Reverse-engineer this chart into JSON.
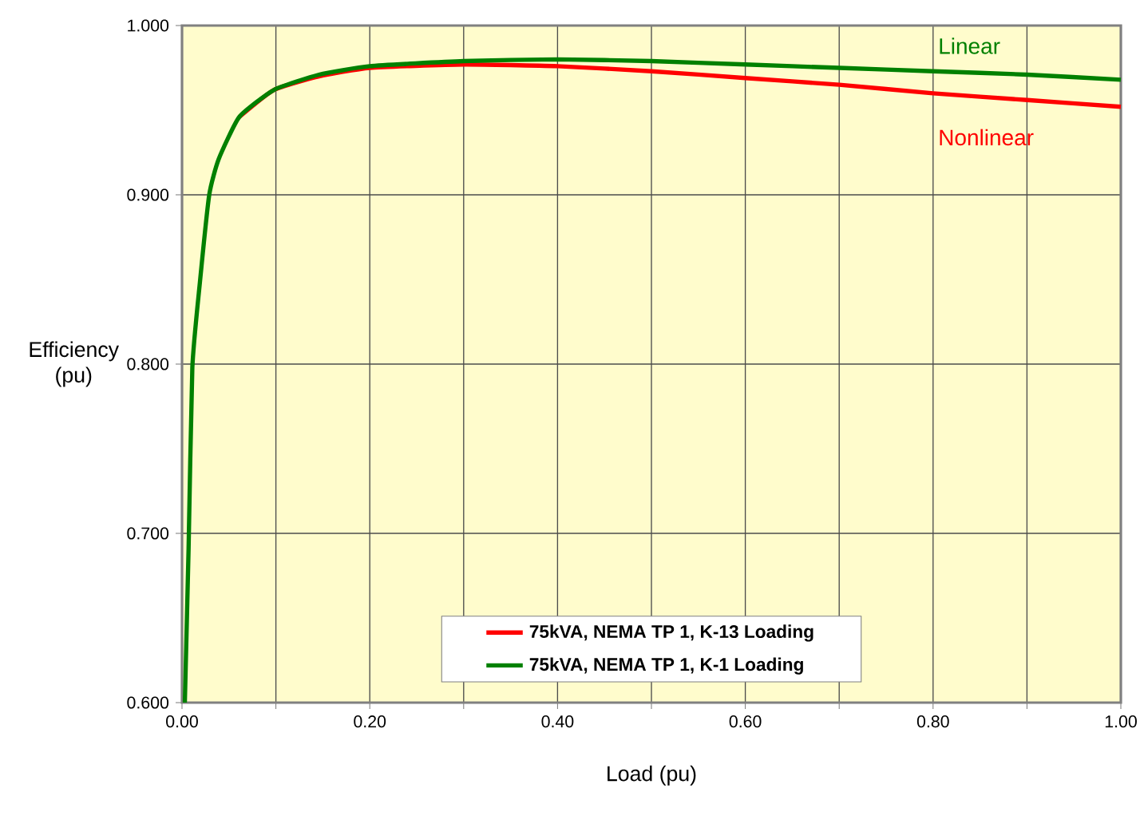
{
  "chart_data": {
    "type": "line",
    "xlabel": "Load (pu)",
    "ylabel": "Efficiency (pu)",
    "xlim": [
      0,
      1
    ],
    "ylim": [
      0.6,
      1.0
    ],
    "xticks": [
      {
        "value": 0,
        "label": "0.00"
      },
      {
        "value": 0.1,
        "label": null
      },
      {
        "value": 0.2,
        "label": "0.20"
      },
      {
        "value": 0.3,
        "label": null
      },
      {
        "value": 0.4,
        "label": "0.40"
      },
      {
        "value": 0.5,
        "label": null
      },
      {
        "value": 0.6,
        "label": "0.60"
      },
      {
        "value": 0.7,
        "label": null
      },
      {
        "value": 0.8,
        "label": "0.80"
      },
      {
        "value": 0.9,
        "label": null
      },
      {
        "value": 1.0,
        "label": "1.00"
      }
    ],
    "yticks": [
      {
        "value": 0.6,
        "label": "0.600"
      },
      {
        "value": 0.7,
        "label": "0.700"
      },
      {
        "value": 0.8,
        "label": "0.800"
      },
      {
        "value": 0.9,
        "label": "0.900"
      },
      {
        "value": 1.0,
        "label": "1.000"
      }
    ],
    "grid": true,
    "legend": "bottom",
    "marker": "none",
    "line_style": "solid",
    "x": [
      0.003,
      0.007,
      0.011,
      0.019,
      0.029,
      0.039,
      0.061,
      0.098,
      0.146,
      0.2,
      0.3,
      0.4,
      0.5,
      0.6,
      0.7,
      0.8,
      0.9,
      1.0
    ],
    "series": [
      {
        "name": "75kVA, NEMA TP 1, K-13 Loading",
        "color": "#ff0000",
        "values": [
          null,
          null,
          null,
          null,
          null,
          null,
          0.946,
          0.962,
          0.97,
          0.975,
          0.977,
          0.976,
          0.973,
          0.969,
          0.965,
          0.96,
          0.956,
          0.952
        ]
      },
      {
        "name": "75kVA, NEMA TP 1, K-1 Loading",
        "color": "#008000",
        "values": [
          0.6,
          0.691,
          0.798,
          0.848,
          0.9,
          0.921,
          0.946,
          0.962,
          0.971,
          0.976,
          0.979,
          0.98,
          0.979,
          0.977,
          0.975,
          0.973,
          0.971,
          0.968
        ]
      }
    ],
    "annotations": [
      "Linear",
      "Nonlinear"
    ]
  }
}
